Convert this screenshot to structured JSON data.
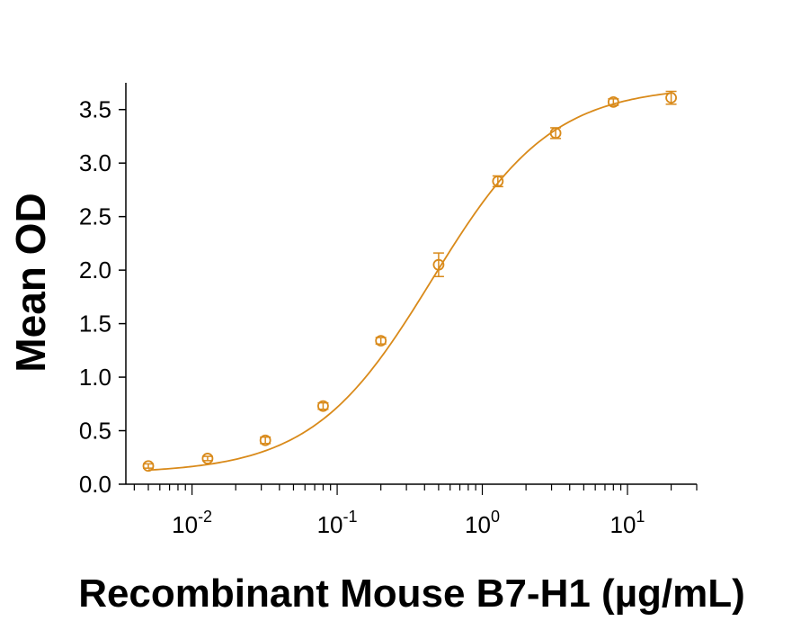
{
  "chart_data": {
    "type": "scatter",
    "title": "",
    "xlabel": "Recombinant Mouse B7-H1 (µg/mL)",
    "ylabel": "Mean OD",
    "x_scale": "log",
    "xlim": [
      0.0035,
      30
    ],
    "ylim": [
      0,
      3.75
    ],
    "y_ticks": [
      "0.0",
      "0.5",
      "1.0",
      "1.5",
      "2.0",
      "2.5",
      "3.0",
      "3.5"
    ],
    "x_ticks": [
      {
        "value": 0.01,
        "base": "10",
        "exp": "-2"
      },
      {
        "value": 0.1,
        "base": "10",
        "exp": "-1"
      },
      {
        "value": 1,
        "base": "10",
        "exp": "0"
      },
      {
        "value": 10,
        "base": "10",
        "exp": "1"
      }
    ],
    "grid": false,
    "legend": "none",
    "color": "#D98A1A",
    "series": [
      {
        "x": [
          0.005,
          0.0128,
          0.032,
          0.08,
          0.2,
          0.5,
          1.28,
          3.2,
          8.0,
          20.0
        ],
        "y": [
          0.17,
          0.24,
          0.41,
          0.73,
          1.34,
          2.05,
          2.83,
          3.28,
          3.57,
          3.61
        ],
        "err": [
          0.02,
          0.02,
          0.03,
          0.03,
          0.03,
          0.11,
          0.05,
          0.05,
          0.03,
          0.06
        ]
      }
    ],
    "fit": {
      "curve": "four-parameter logistic",
      "bottom": 0.1,
      "top": 3.72,
      "ec50": 0.45,
      "hill": 1.05
    }
  }
}
